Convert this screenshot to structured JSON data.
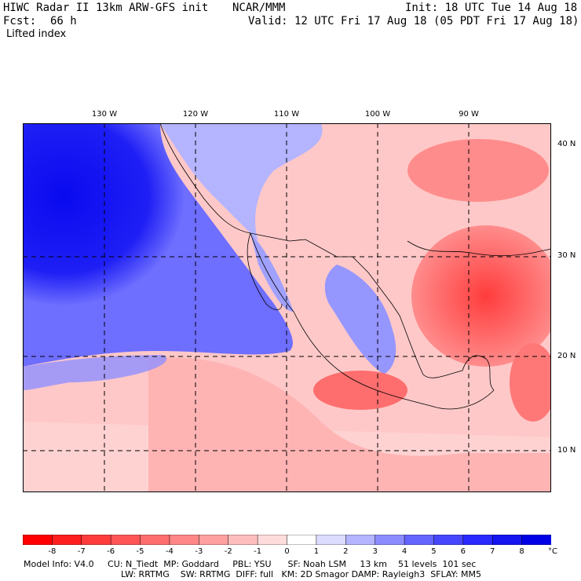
{
  "header": {
    "title": "HIWC Radar II 13km ARW-GFS init",
    "org": "NCAR/MMM",
    "fcst_label": "Fcst:",
    "fcst_value": "66 h",
    "init": "Init: 18 UTC Tue 14 Aug 18",
    "valid": "Valid: 12 UTC Fri 17 Aug 18 (05 PDT Fri 17 Aug 18)",
    "field": "Lifted index"
  },
  "map": {
    "lon_labels": [
      "130 W",
      "120 W",
      "110 W",
      "100 W",
      "90 W"
    ],
    "lat_labels": [
      "40 N",
      "30 N",
      "20 N",
      "10 N"
    ]
  },
  "colorbar": {
    "ticks": [
      "-8",
      "-7",
      "-6",
      "-5",
      "-4",
      "-3",
      "-2",
      "-1",
      "0",
      "1",
      "2",
      "3",
      "4",
      "5",
      "6",
      "7",
      "8"
    ],
    "unit": "°C",
    "colors": [
      "#ff0000",
      "#ff1e1e",
      "#ff3c3c",
      "#ff5555",
      "#ff6e6e",
      "#ff8787",
      "#ffa0a0",
      "#ffbebe",
      "#ffdcdc",
      "#ffffff",
      "#dcdcff",
      "#b4b4ff",
      "#8c8cff",
      "#6464ff",
      "#4646ff",
      "#2828ff",
      "#1414f0",
      "#0000e6"
    ]
  },
  "footer": {
    "line1": "Model Info: V4.0     CU: N_Tiedt  MP: Goddard     PBL: YSU      SF: Noah LSM     13 km    51 levels  101 sec",
    "line2": "LW: RRTMG    SW: RRTMG  DIFF: full   KM: 2D Smagor DAMP: Rayleigh3  SFLAY: MM5"
  }
}
